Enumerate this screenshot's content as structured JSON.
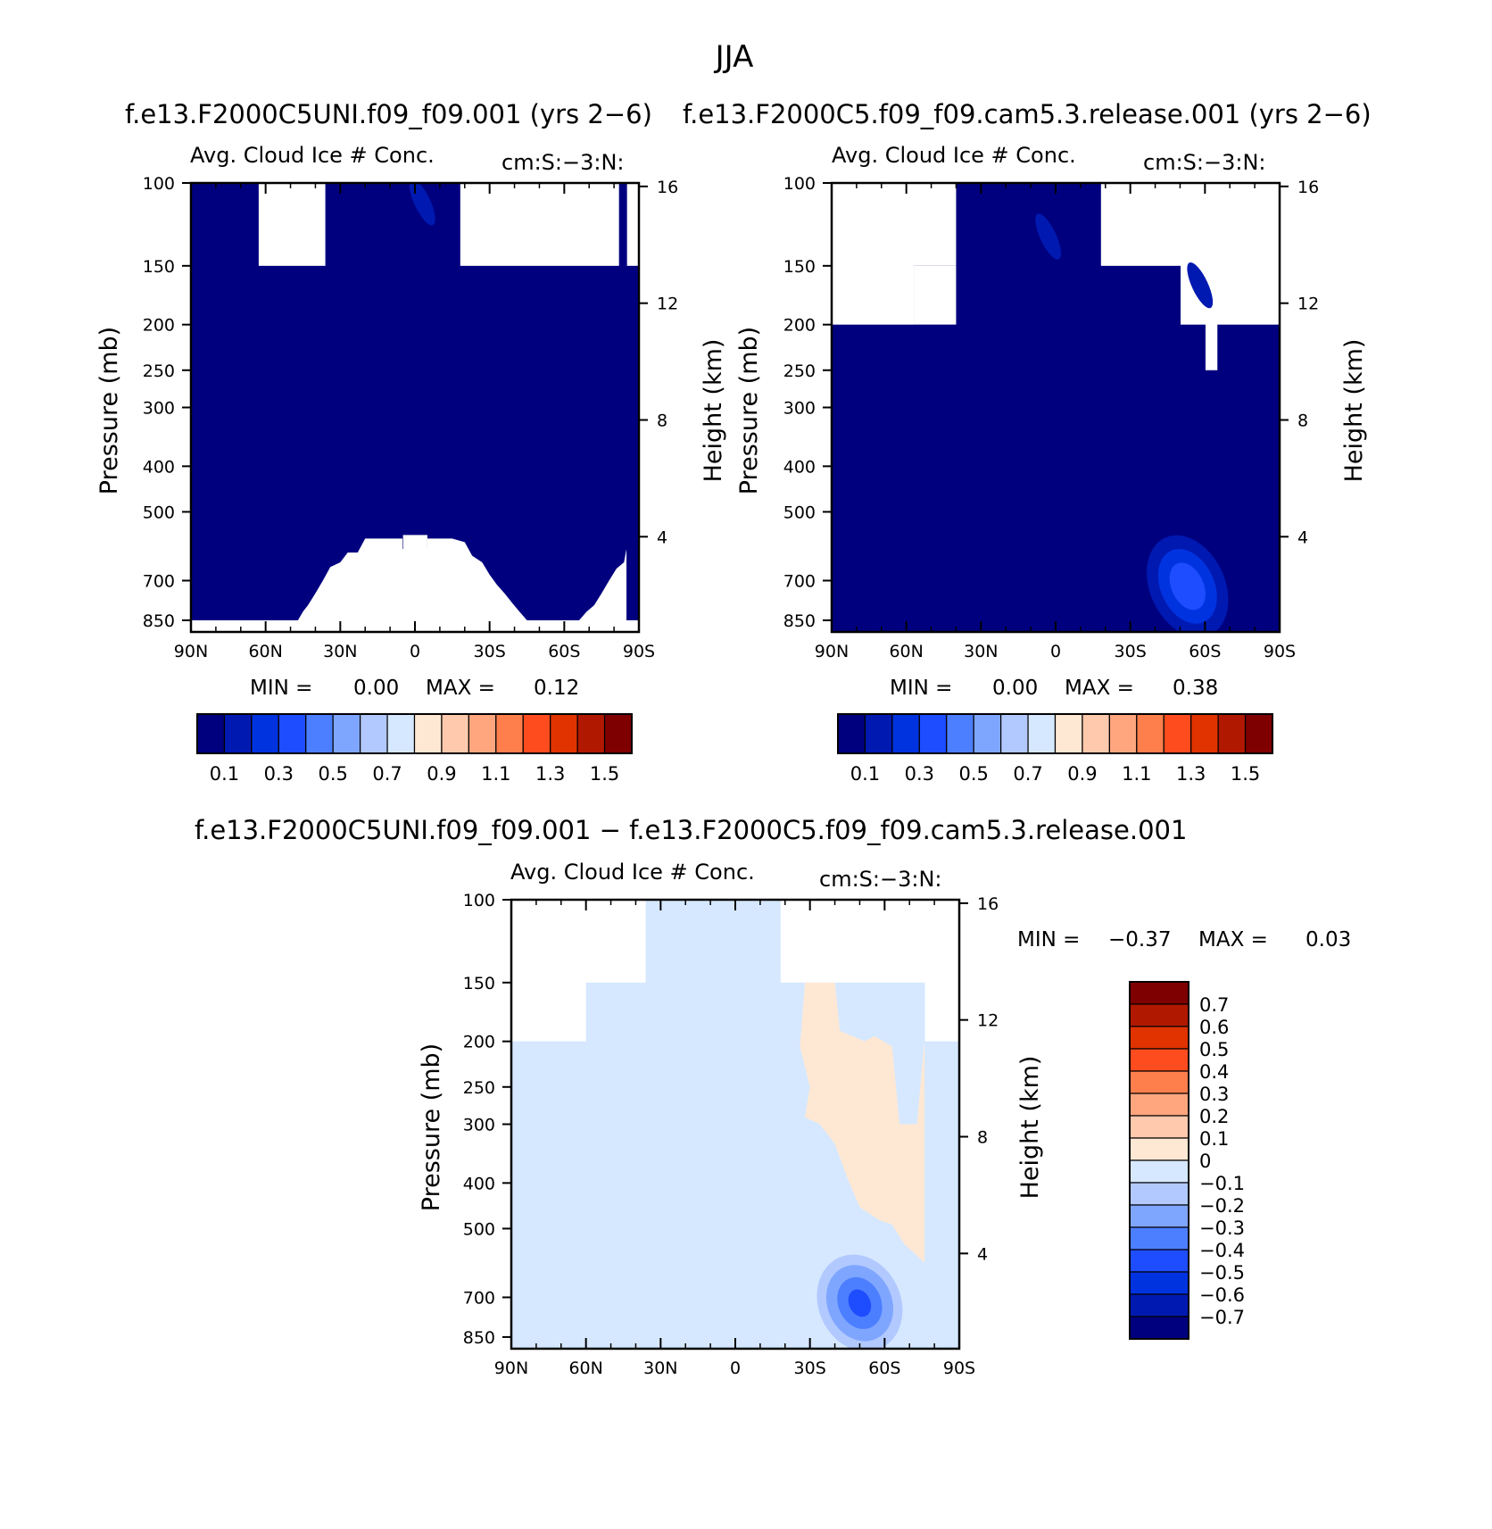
{
  "figure_title": "JJA",
  "colors": {
    "levels": [
      "#00007f",
      "#0019b0",
      "#0033e0",
      "#1e4cff",
      "#4c7fff",
      "#7fa6ff",
      "#b2c9ff",
      "#d6e8ff",
      "#ffe8d3",
      "#ffc9ad",
      "#ffa67f",
      "#ff7f4c",
      "#ff4c1e",
      "#e03300",
      "#b01900",
      "#7f0000"
    ]
  },
  "chart_data": [
    {
      "type": "contour",
      "panel": "top-left",
      "title": "f.e13.F2000C5UNI.f09_f09.001 (yrs 2-6)",
      "variable": "Avg. Cloud Ice # Conc.",
      "units": "cm:S:-3:N:",
      "ylabel": "Pressure (mb)",
      "ylabel_right": "Height (km)",
      "x_ticks": [
        "90N",
        "60N",
        "30N",
        "0",
        "30S",
        "60S",
        "90S"
      ],
      "p_ticks": [
        100,
        150,
        200,
        250,
        300,
        400,
        500,
        700,
        850
      ],
      "p_tick_labels": [
        "100",
        "150",
        "200",
        "250",
        "300",
        "400",
        "500",
        "700",
        "850"
      ],
      "h_ticks": [
        16,
        12,
        8,
        4
      ],
      "h_tick_labels": [
        "16",
        "12",
        "8",
        "4"
      ],
      "stats": {
        "min_label": "MIN =",
        "min": "0.00",
        "max_label": "MAX =",
        "max": "0.12"
      },
      "colorbar": {
        "orientation": "horizontal",
        "labels": [
          "0.1",
          "0.3",
          "0.5",
          "0.7",
          "0.9",
          "1.1",
          "1.3",
          "1.5"
        ]
      },
      "field": {
        "columns": [
          [
            -90,
            -63,
            850,
            100
          ],
          [
            -63,
            -36,
            850,
            150
          ],
          [
            -36,
            -5,
            850,
            100
          ],
          [
            -5,
            5,
            560,
            100
          ],
          [
            5,
            18,
            850,
            100
          ],
          [
            18,
            82,
            850,
            150
          ],
          [
            82,
            85,
            850,
            100
          ],
          [
            85,
            90,
            850,
            150
          ]
        ],
        "holes": [
          {
            "lat": [
              -90,
              -60,
              -55,
              -50,
              -47,
              -45,
              -43,
              -40,
              -37,
              -34,
              -30,
              -27,
              -23,
              -20,
              -15,
              -5,
              -5,
              5,
              5,
              15,
              20,
              23,
              27,
              30,
              33,
              36,
              39,
              42,
              45,
              48,
              52,
              56,
              60,
              63,
              66,
              69,
              72,
              75,
              78,
              81,
              84,
              85,
              85,
              -90
            ],
            "p": [
              900,
              900,
              880,
              865,
              850,
              815,
              790,
              745,
              700,
              655,
              640,
              610,
              610,
              570,
              570,
              570,
              600,
              600,
              570,
              570,
              580,
              620,
              640,
              680,
              715,
              745,
              780,
              815,
              850,
              870,
              890,
              900,
              900,
              880,
              850,
              815,
              790,
              745,
              700,
              660,
              640,
              600,
              900,
              900
            ]
          }
        ],
        "blobs": [
          {
            "lat": 3,
            "p": 110,
            "value": 0.11
          }
        ]
      }
    },
    {
      "type": "contour",
      "panel": "top-right",
      "title": "f.e13.F2000C5.f09_f09.cam5.3.release.001 (yrs 2-6)",
      "variable": "Avg. Cloud Ice # Conc.",
      "units": "cm:S:-3:N:",
      "ylabel": "Pressure (mb)",
      "ylabel_right": "Height (km)",
      "x_ticks": [
        "90N",
        "60N",
        "30N",
        "0",
        "30S",
        "60S",
        "90S"
      ],
      "p_ticks": [
        100,
        150,
        200,
        250,
        300,
        400,
        500,
        700,
        850
      ],
      "p_tick_labels": [
        "100",
        "150",
        "200",
        "250",
        "300",
        "400",
        "500",
        "700",
        "850"
      ],
      "h_ticks": [
        16,
        12,
        8,
        4
      ],
      "h_tick_labels": [
        "16",
        "12",
        "8",
        "4"
      ],
      "stats": {
        "min_label": "MIN =",
        "min": "0.00",
        "max_label": "MAX =",
        "max": "0.38"
      },
      "colorbar": {
        "orientation": "horizontal",
        "labels": [
          "0.1",
          "0.3",
          "0.5",
          "0.7",
          "0.9",
          "1.1",
          "1.3",
          "1.5"
        ]
      },
      "field": {
        "columns": [
          [
            -90,
            -57,
            900,
            200
          ],
          [
            -57,
            -40,
            900,
            150
          ],
          [
            -40,
            18,
            900,
            100
          ],
          [
            18,
            50,
            900,
            150
          ],
          [
            50,
            60,
            900,
            200
          ],
          [
            60,
            65,
            900,
            250
          ],
          [
            65,
            90,
            900,
            200
          ]
        ],
        "holes": [
          {
            "lat": [
              -57,
              -40,
              -40,
              -57
            ],
            "p": [
              200,
              200,
              150,
              150
            ]
          }
        ],
        "blobs": [
          {
            "lat": 53,
            "p": 720,
            "value": 0.38
          },
          {
            "lat": -3,
            "p": 130,
            "value": 0.12
          },
          {
            "lat": 58,
            "p": 165,
            "value": 0.11
          }
        ]
      }
    },
    {
      "type": "contour",
      "panel": "bottom",
      "title": "f.e13.F2000C5UNI.f09_f09.001 - f.e13.F2000C5.f09_f09.cam5.3.release.001",
      "variable": "Avg. Cloud Ice # Conc.",
      "units": "cm:S:-3:N:",
      "ylabel": "Pressure (mb)",
      "ylabel_right": "Height (km)",
      "x_ticks": [
        "90N",
        "60N",
        "30N",
        "0",
        "30S",
        "60S",
        "90S"
      ],
      "p_ticks": [
        100,
        150,
        200,
        250,
        300,
        400,
        500,
        700,
        850
      ],
      "p_tick_labels": [
        "100",
        "150",
        "200",
        "250",
        "300",
        "400",
        "500",
        "700",
        "850"
      ],
      "h_ticks": [
        16,
        12,
        8,
        4
      ],
      "h_tick_labels": [
        "16",
        "12",
        "8",
        "4"
      ],
      "stats": {
        "min_label": "MIN =",
        "min": "-0.37",
        "max_label": "MAX =",
        "max": "0.03"
      },
      "colorbar": {
        "orientation": "vertical",
        "labels": [
          "0.7",
          "0.6",
          "0.5",
          "0.4",
          "0.3",
          "0.2",
          "0.1",
          "0",
          "-0.1",
          "-0.2",
          "-0.3",
          "-0.4",
          "-0.5",
          "-0.6",
          "-0.7"
        ]
      },
      "field": {
        "columns": [
          [
            -90,
            -60,
            900,
            200
          ],
          [
            -60,
            -36,
            900,
            150
          ],
          [
            -36,
            18,
            900,
            100
          ],
          [
            18,
            76,
            900,
            150
          ],
          [
            76,
            90,
            900,
            200
          ]
        ],
        "positive_regions": [
          {
            "lat": [
              28,
              40,
              42,
              52,
              56,
              63,
              66,
              73,
              76,
              76,
              68,
              63,
              58,
              50,
              45,
              40,
              34,
              28,
              30,
              26
            ],
            "p": [
              150,
              150,
              190,
              200,
              195,
              205,
              300,
              300,
              200,
              590,
              540,
              490,
              480,
              450,
              390,
              330,
              300,
              290,
              250,
              205
            ]
          }
        ],
        "blobs": [
          {
            "lat": 50,
            "p": 720,
            "value": -0.37
          }
        ]
      }
    }
  ]
}
